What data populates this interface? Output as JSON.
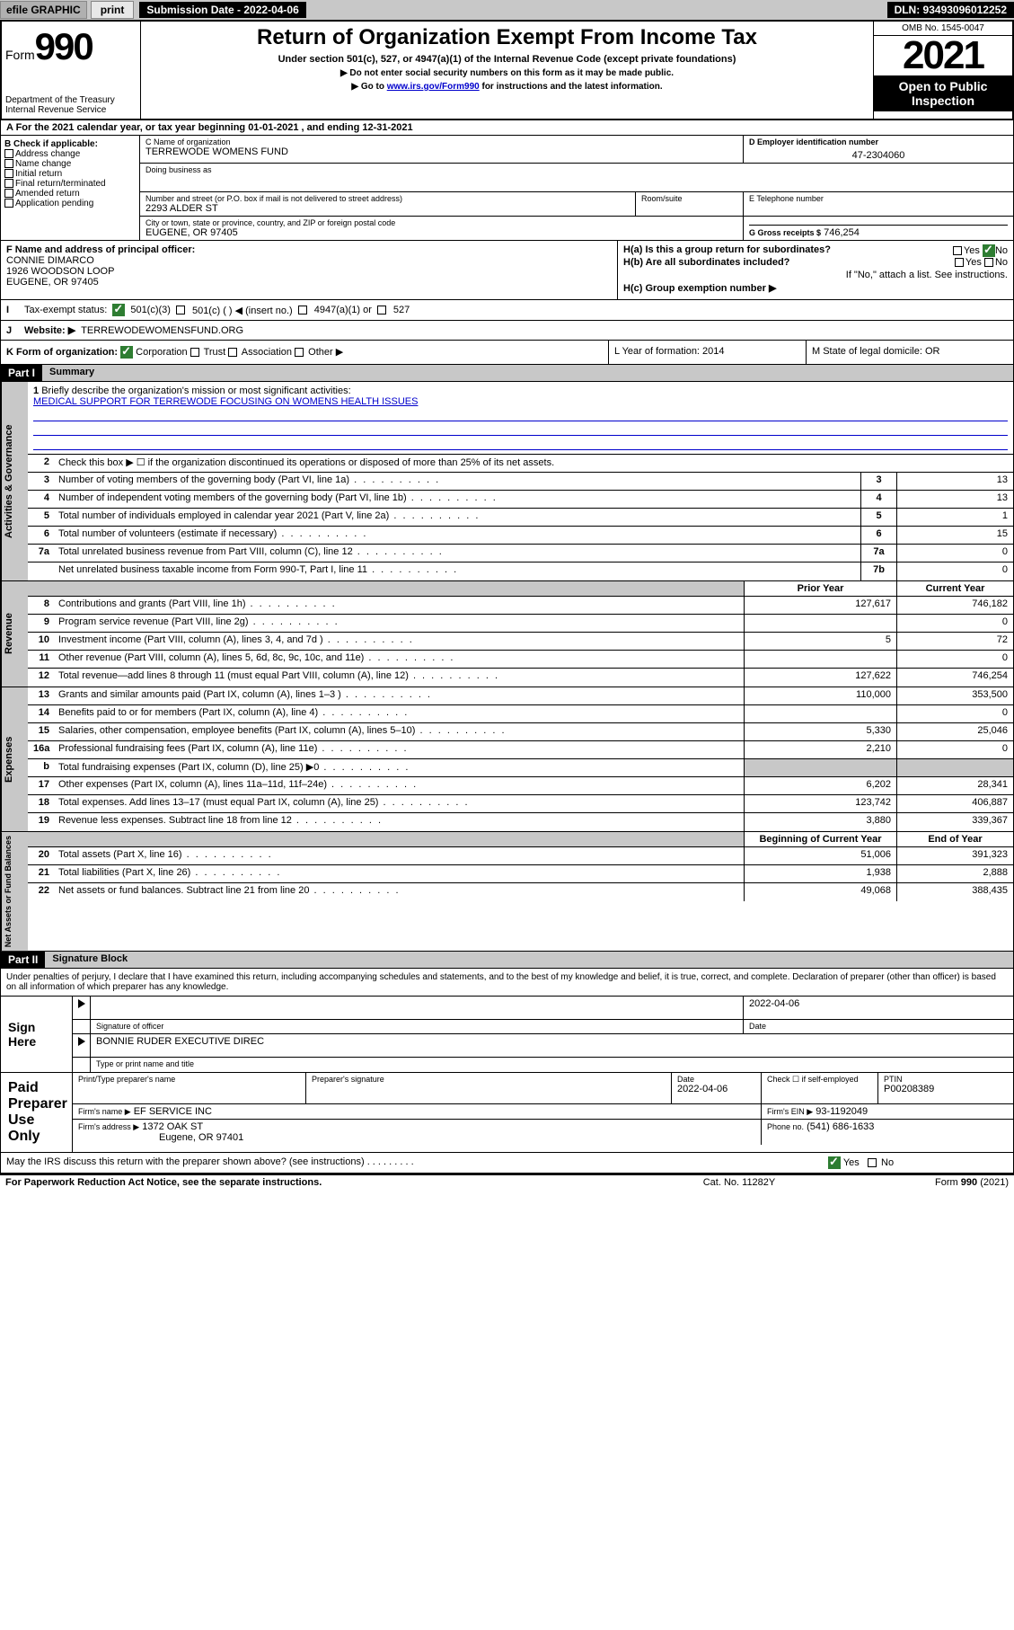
{
  "topbar": {
    "efile": "efile GRAPHIC",
    "print": "print",
    "sub_date_label": "Submission Date - 2022-04-06",
    "dln": "DLN: 93493096012252"
  },
  "header": {
    "form_label": "Form",
    "form_num": "990",
    "dept": "Department of the Treasury\nInternal Revenue Service",
    "title": "Return of Organization Exempt From Income Tax",
    "subtitle": "Under section 501(c), 527, or 4947(a)(1) of the Internal Revenue Code (except private foundations)",
    "note1": "▶ Do not enter social security numbers on this form as it may be made public.",
    "note2_pre": "▶ Go to ",
    "note2_link": "www.irs.gov/Form990",
    "note2_post": " for instructions and the latest information.",
    "omb": "OMB No. 1545-0047",
    "year": "2021",
    "open": "Open to Public Inspection"
  },
  "row_a": "A For the 2021 calendar year, or tax year beginning 01-01-2021   , and ending 12-31-2021",
  "col_b": {
    "label": "B Check if applicable:",
    "items": [
      "Address change",
      "Name change",
      "Initial return",
      "Final return/terminated",
      "Amended return",
      "Application pending"
    ]
  },
  "col_c": {
    "name_label": "C Name of organization",
    "name": "TERREWODE WOMENS FUND",
    "dba_label": "Doing business as",
    "addr_label": "Number and street (or P.O. box if mail is not delivered to street address)",
    "addr": "2293 ALDER ST",
    "room_label": "Room/suite",
    "city_label": "City or town, state or province, country, and ZIP or foreign postal code",
    "city": "EUGENE, OR  97405"
  },
  "col_d": {
    "label": "D Employer identification number",
    "value": "47-2304060"
  },
  "col_e": {
    "label": "E Telephone number",
    "value": ""
  },
  "col_g": {
    "label": "G Gross receipts $",
    "value": "746,254"
  },
  "col_f": {
    "label": "F Name and address of principal officer:",
    "name": "CONNIE DIMARCO",
    "addr1": "1926 WOODSON LOOP",
    "addr2": "EUGENE, OR  97405"
  },
  "col_h": {
    "ha_label": "H(a)  Is this a group return for subordinates?",
    "hb_label": "H(b)  Are all subordinates included?",
    "hb_note": "If \"No,\" attach a list. See instructions.",
    "hc_label": "H(c)  Group exemption number ▶",
    "yes": "Yes",
    "no": "No"
  },
  "row_i": {
    "label": "Tax-exempt status:",
    "opt1": "501(c)(3)",
    "opt2": "501(c) (  ) ◀ (insert no.)",
    "opt3": "4947(a)(1) or",
    "opt4": "527"
  },
  "row_j": {
    "label": "Website: ▶",
    "value": "TERREWODEWOMENSFUND.ORG"
  },
  "row_k": {
    "label": "K Form of organization:",
    "corp": "Corporation",
    "trust": "Trust",
    "assoc": "Association",
    "other": "Other ▶"
  },
  "row_l": {
    "label": "L Year of formation: 2014"
  },
  "row_m": {
    "label": "M State of legal domicile: OR"
  },
  "part1": {
    "title": "Part I",
    "subtitle": "Summary",
    "line1_label": "Briefly describe the organization's mission or most significant activities:",
    "line1_text": "MEDICAL SUPPORT FOR TERREWODE FOCUSING ON WOMENS HEALTH ISSUES",
    "line2": "Check this box ▶ ☐  if the organization discontinued its operations or disposed of more than 25% of its net assets.",
    "sections": {
      "gov": "Activities & Governance",
      "rev": "Revenue",
      "exp": "Expenses",
      "net": "Net Assets or Fund Balances"
    },
    "gov_lines": [
      {
        "n": "3",
        "d": "Number of voting members of the governing body (Part VI, line 1a)",
        "box": "3",
        "v": "13"
      },
      {
        "n": "4",
        "d": "Number of independent voting members of the governing body (Part VI, line 1b)",
        "box": "4",
        "v": "13"
      },
      {
        "n": "5",
        "d": "Total number of individuals employed in calendar year 2021 (Part V, line 2a)",
        "box": "5",
        "v": "1"
      },
      {
        "n": "6",
        "d": "Total number of volunteers (estimate if necessary)",
        "box": "6",
        "v": "15"
      },
      {
        "n": "7a",
        "d": "Total unrelated business revenue from Part VIII, column (C), line 12",
        "box": "7a",
        "v": "0"
      },
      {
        "n": "",
        "d": "Net unrelated business taxable income from Form 990-T, Part I, line 11",
        "box": "7b",
        "v": "0"
      }
    ],
    "hdr_prior": "Prior Year",
    "hdr_current": "Current Year",
    "rev_lines": [
      {
        "n": "8",
        "d": "Contributions and grants (Part VIII, line 1h)",
        "p": "127,617",
        "c": "746,182"
      },
      {
        "n": "9",
        "d": "Program service revenue (Part VIII, line 2g)",
        "p": "",
        "c": "0"
      },
      {
        "n": "10",
        "d": "Investment income (Part VIII, column (A), lines 3, 4, and 7d )",
        "p": "5",
        "c": "72"
      },
      {
        "n": "11",
        "d": "Other revenue (Part VIII, column (A), lines 5, 6d, 8c, 9c, 10c, and 11e)",
        "p": "",
        "c": "0"
      },
      {
        "n": "12",
        "d": "Total revenue—add lines 8 through 11 (must equal Part VIII, column (A), line 12)",
        "p": "127,622",
        "c": "746,254"
      }
    ],
    "exp_lines": [
      {
        "n": "13",
        "d": "Grants and similar amounts paid (Part IX, column (A), lines 1–3 )",
        "p": "110,000",
        "c": "353,500"
      },
      {
        "n": "14",
        "d": "Benefits paid to or for members (Part IX, column (A), line 4)",
        "p": "",
        "c": "0"
      },
      {
        "n": "15",
        "d": "Salaries, other compensation, employee benefits (Part IX, column (A), lines 5–10)",
        "p": "5,330",
        "c": "25,046"
      },
      {
        "n": "16a",
        "d": "Professional fundraising fees (Part IX, column (A), line 11e)",
        "p": "2,210",
        "c": "0"
      },
      {
        "n": "b",
        "d": "Total fundraising expenses (Part IX, column (D), line 25) ▶0",
        "p": "",
        "c": "",
        "grey": true
      },
      {
        "n": "17",
        "d": "Other expenses (Part IX, column (A), lines 11a–11d, 11f–24e)",
        "p": "6,202",
        "c": "28,341"
      },
      {
        "n": "18",
        "d": "Total expenses. Add lines 13–17 (must equal Part IX, column (A), line 25)",
        "p": "123,742",
        "c": "406,887"
      },
      {
        "n": "19",
        "d": "Revenue less expenses. Subtract line 18 from line 12",
        "p": "3,880",
        "c": "339,367"
      }
    ],
    "hdr_begin": "Beginning of Current Year",
    "hdr_end": "End of Year",
    "net_lines": [
      {
        "n": "20",
        "d": "Total assets (Part X, line 16)",
        "p": "51,006",
        "c": "391,323"
      },
      {
        "n": "21",
        "d": "Total liabilities (Part X, line 26)",
        "p": "1,938",
        "c": "2,888"
      },
      {
        "n": "22",
        "d": "Net assets or fund balances. Subtract line 21 from line 20",
        "p": "49,068",
        "c": "388,435"
      }
    ]
  },
  "part2": {
    "title": "Part II",
    "subtitle": "Signature Block",
    "intro": "Under penalties of perjury, I declare that I have examined this return, including accompanying schedules and statements, and to the best of my knowledge and belief, it is true, correct, and complete. Declaration of preparer (other than officer) is based on all information of which preparer has any knowledge.",
    "sign_here": "Sign Here",
    "sig_officer": "Signature of officer",
    "sig_date": "2022-04-06",
    "date_label": "Date",
    "officer_name": "BONNIE RUDER  EXECUTIVE DIREC",
    "officer_label": "Type or print name and title",
    "paid": "Paid Preparer Use Only",
    "prep_name_label": "Print/Type preparer's name",
    "prep_sig_label": "Preparer's signature",
    "prep_date_label": "Date",
    "prep_date": "2022-04-06",
    "check_label": "Check ☐ if self-employed",
    "ptin_label": "PTIN",
    "ptin": "P00208389",
    "firm_name_label": "Firm's name    ▶",
    "firm_name": "EF SERVICE INC",
    "firm_ein_label": "Firm's EIN ▶",
    "firm_ein": "93-1192049",
    "firm_addr_label": "Firm's address ▶",
    "firm_addr": "1372 OAK ST",
    "firm_city": "Eugene, OR  97401",
    "phone_label": "Phone no.",
    "phone": "(541) 686-1633",
    "discuss": "May the IRS discuss this return with the preparer shown above? (see instructions)",
    "yes": "Yes",
    "no": "No"
  },
  "footer": {
    "left": "For Paperwork Reduction Act Notice, see the separate instructions.",
    "mid": "Cat. No. 11282Y",
    "right": "Form 990 (2021)"
  }
}
